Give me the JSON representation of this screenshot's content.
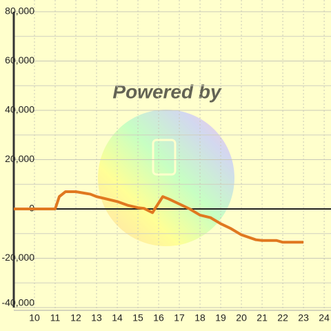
{
  "chart_data": {
    "type": "line",
    "watermark": "Powered by",
    "x": [
      9,
      11,
      11.2,
      11.5,
      12,
      12.7,
      13,
      13.5,
      14,
      14.5,
      15,
      15.3,
      15.7,
      16.2,
      16.5,
      17,
      17.5,
      18,
      18.5,
      19,
      19.5,
      20,
      20.7,
      21,
      21.7,
      22,
      23
    ],
    "series": [
      {
        "color": "#e07820",
        "values": [
          0,
          0,
          5000,
          7000,
          7000,
          6000,
          5000,
          4000,
          3000,
          1500,
          500,
          200,
          -1500,
          5000,
          4000,
          2000,
          0,
          -2500,
          -3500,
          -6000,
          -8000,
          -10500,
          -12500,
          -12800,
          -12800,
          -13500,
          -13500
        ]
      }
    ],
    "xlim": [
      9,
      24.33
    ],
    "xticks": [
      10,
      11,
      12,
      13,
      14,
      15,
      16,
      17,
      18,
      19,
      20,
      21,
      22,
      23,
      24
    ],
    "ylim": [
      -40000,
      80000
    ],
    "yticks": [
      {
        "value": -40000,
        "label": "-40,000"
      },
      {
        "value": -20000,
        "label": "-20,000"
      },
      0,
      {
        "value": 20000,
        "label": "20,000"
      },
      {
        "value": 40000,
        "label": "40,000"
      },
      {
        "value": 60000,
        "label": "60,000"
      },
      {
        "value": 80000,
        "label": "80,000"
      }
    ],
    "grid": true
  }
}
